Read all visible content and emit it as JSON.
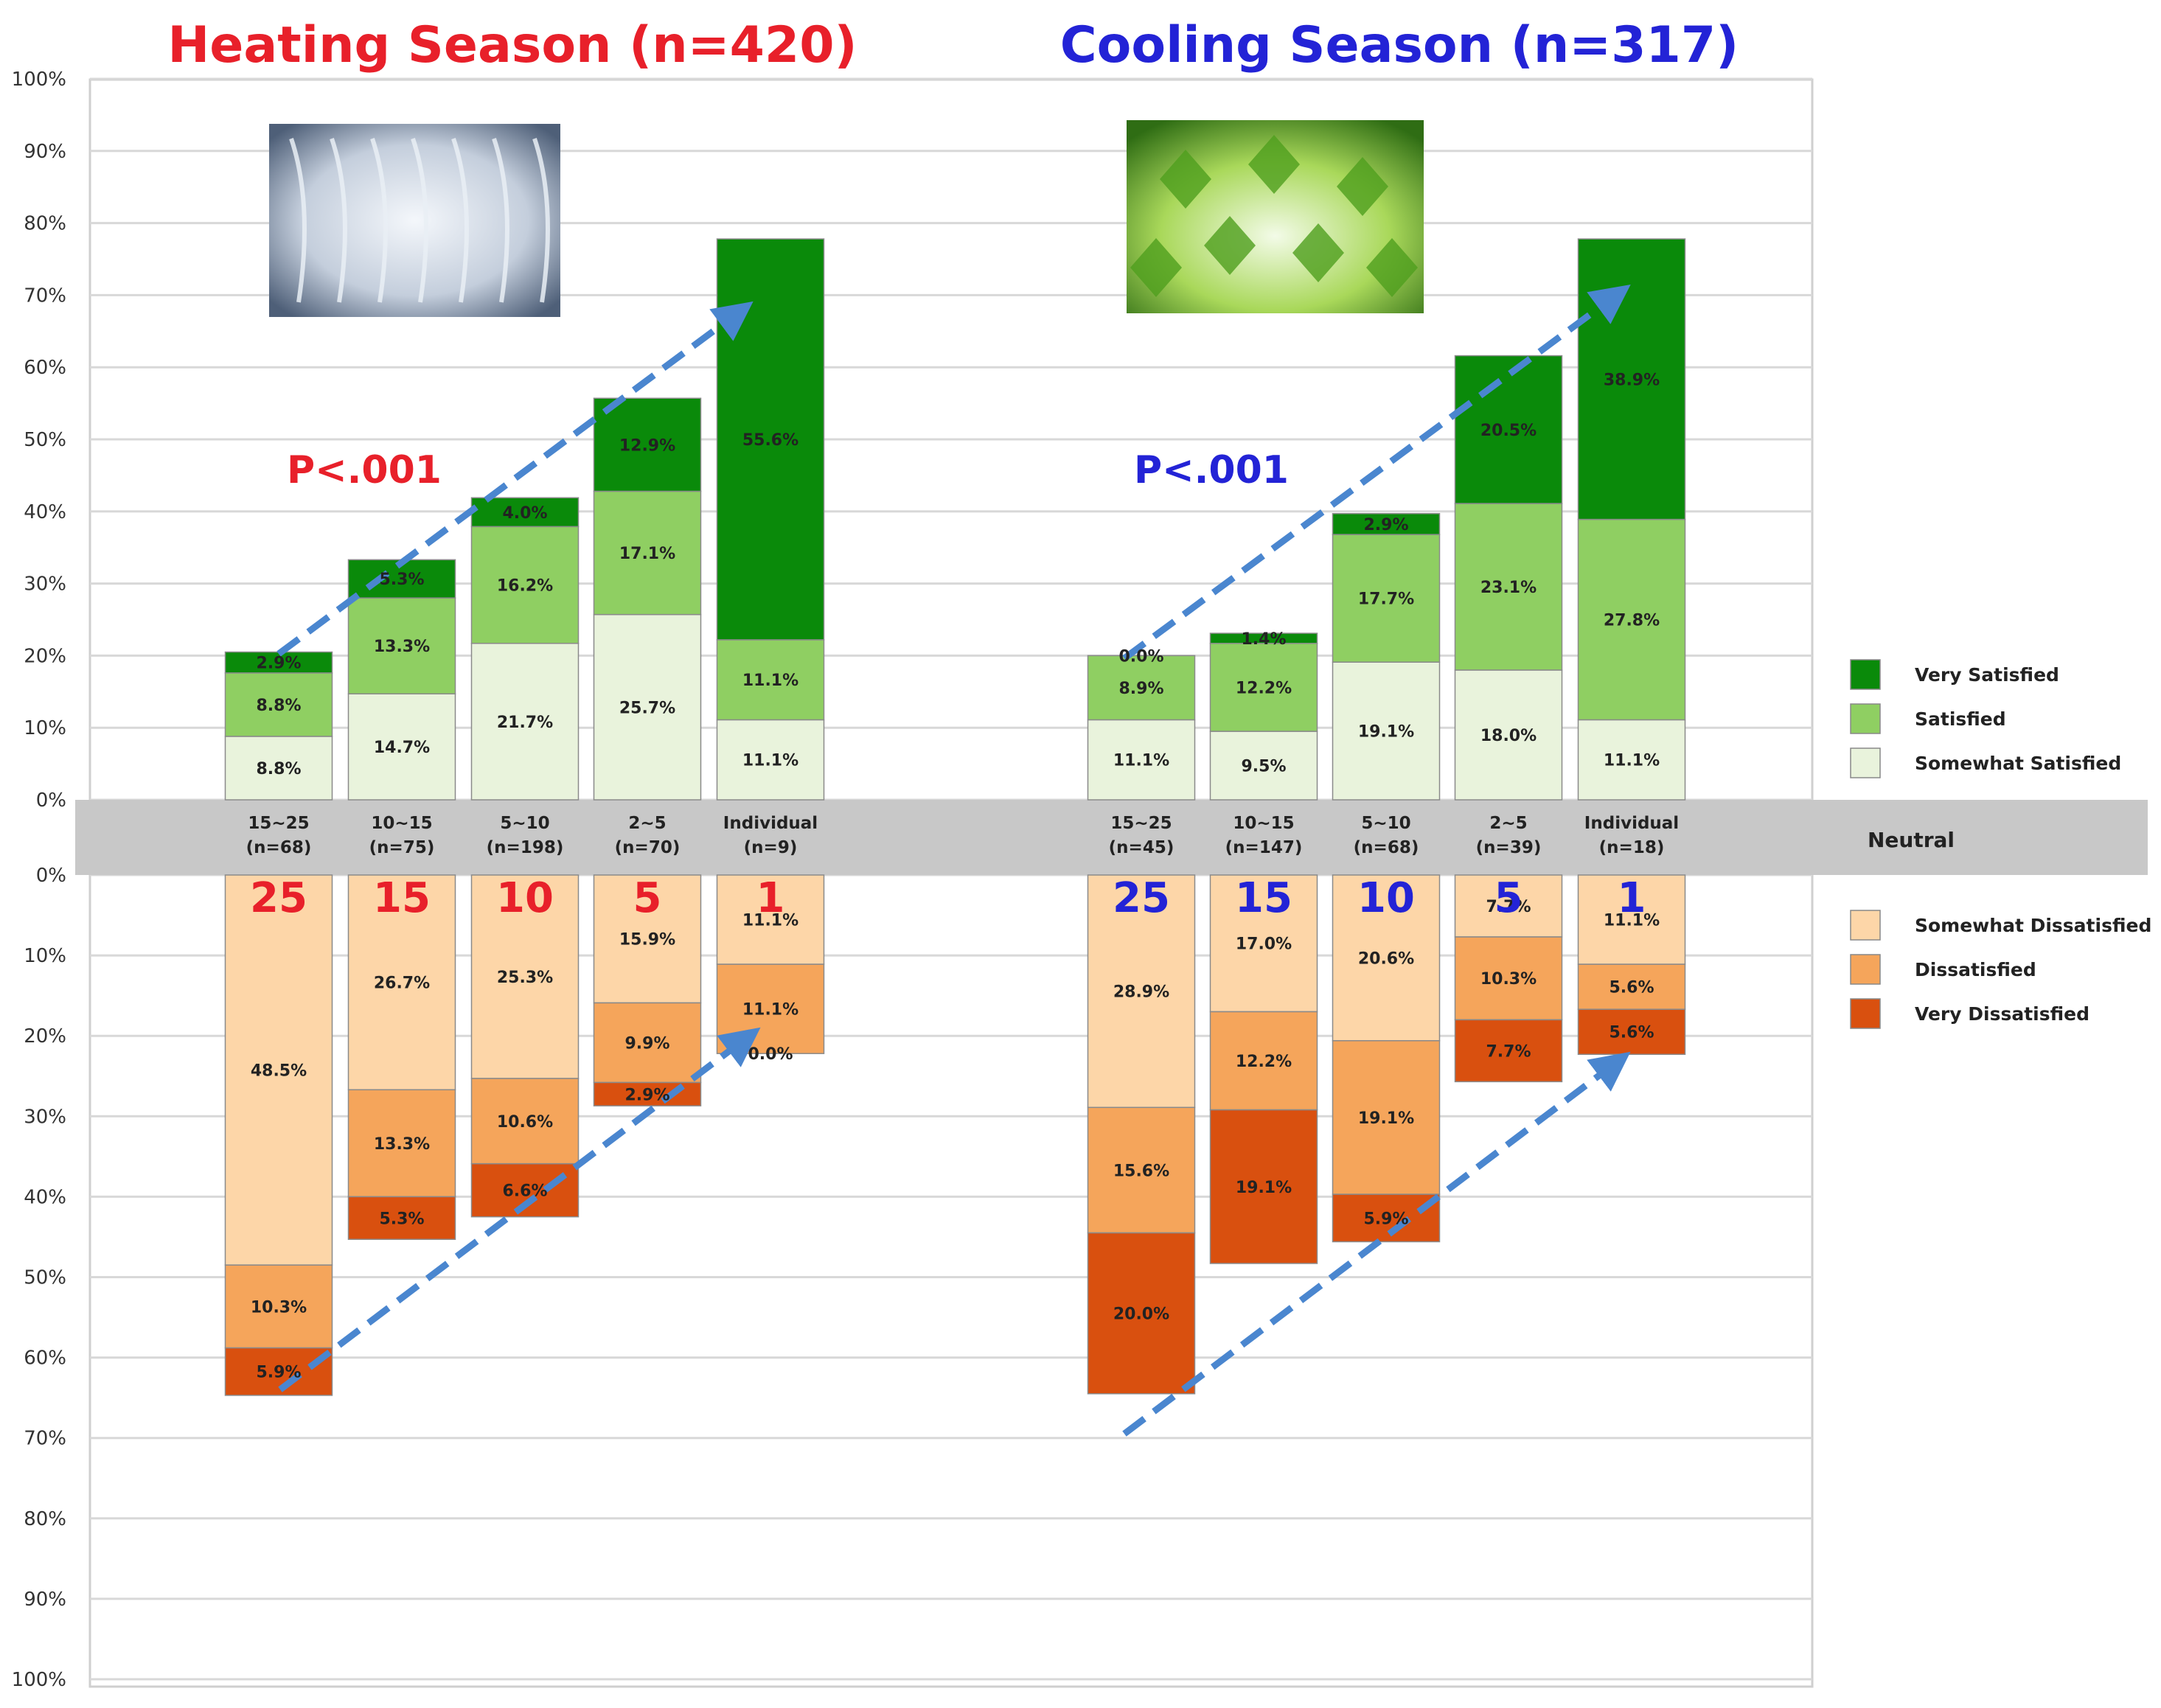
{
  "colors": {
    "very_satisfied": "#0a8a0a",
    "satisfied": "#8fcf62",
    "somewhat_satisfied": "#e9f3dc",
    "somewhat_dissatisfied": "#fdd6a8",
    "dissatisfied": "#f5a55b",
    "very_dissatisfied": "#d9500f",
    "neutral_band": "#c8c8c8",
    "heating": "#e8202a",
    "cooling": "#2323d6",
    "arrow": "#4a86cf"
  },
  "chart_data": {
    "type": "bar",
    "stacked": "diverging",
    "y_ticks_top": [
      "100%",
      "90%",
      "80%",
      "70%",
      "60%",
      "50%",
      "40%",
      "30%",
      "20%",
      "10%",
      "0%"
    ],
    "y_ticks_bottom": [
      "0%",
      "10%",
      "20%",
      "30%",
      "40%",
      "50%",
      "60%",
      "70%",
      "80%",
      "90%",
      "100%"
    ],
    "ylim": [
      -100,
      100
    ],
    "grid": true,
    "neutral_label": "Neutral",
    "legend": {
      "positive": [
        "Very Satisfied",
        "Satisfied",
        "Somewhat Satisfied"
      ],
      "negative": [
        "Somewhat Dissatisfied",
        "Dissatisfied",
        "Very Dissatisfied"
      ]
    },
    "panels": [
      {
        "title": "Heating Season (n=420)",
        "pvalue": "P<.001",
        "image": "snow-covered-branches",
        "categories": [
          {
            "label": "15~25",
            "n": "(n=68)",
            "big": "25",
            "pos": {
              "somewhat": {
                "v": 8.8,
                "t": "8.8%"
              },
              "satisfied": {
                "v": 8.8,
                "t": "8.8%"
              },
              "very": {
                "v": 2.9,
                "t": "2.9%"
              }
            },
            "neg": {
              "somewhat": {
                "v": 48.5,
                "t": "48.5%"
              },
              "dissatisfied": {
                "v": 10.3,
                "t": "10.3%"
              },
              "very": {
                "v": 5.9,
                "t": "5.9%"
              }
            }
          },
          {
            "label": "10~15",
            "n": "(n=75)",
            "big": "15",
            "pos": {
              "somewhat": {
                "v": 14.7,
                "t": "14.7%"
              },
              "satisfied": {
                "v": 13.3,
                "t": "13.3%"
              },
              "very": {
                "v": 5.3,
                "t": "5.3%"
              }
            },
            "neg": {
              "somewhat": {
                "v": 26.7,
                "t": "26.7%"
              },
              "dissatisfied": {
                "v": 13.3,
                "t": "13.3%"
              },
              "very": {
                "v": 5.3,
                "t": "5.3%"
              }
            }
          },
          {
            "label": "5~10",
            "n": "(n=198)",
            "big": "10",
            "pos": {
              "somewhat": {
                "v": 21.7,
                "t": "21.7%"
              },
              "satisfied": {
                "v": 16.2,
                "t": "16.2%"
              },
              "very": {
                "v": 4.0,
                "t": "4.0%"
              }
            },
            "neg": {
              "somewhat": {
                "v": 25.3,
                "t": "25.3%"
              },
              "dissatisfied": {
                "v": 10.6,
                "t": "10.6%"
              },
              "very": {
                "v": 6.6,
                "t": "6.6%"
              }
            }
          },
          {
            "label": "2~5",
            "n": "(n=70)",
            "big": "5",
            "pos": {
              "somewhat": {
                "v": 25.7,
                "t": "25.7%"
              },
              "satisfied": {
                "v": 17.1,
                "t": "17.1%"
              },
              "very": {
                "v": 12.9,
                "t": "12.9%"
              }
            },
            "neg": {
              "somewhat": {
                "v": 15.9,
                "t": "15.9%"
              },
              "dissatisfied": {
                "v": 9.9,
                "t": "9.9%"
              },
              "very": {
                "v": 2.9,
                "t": "2.9%"
              }
            }
          },
          {
            "label": "Individual",
            "n": "(n=9)",
            "big": "1",
            "pos": {
              "somewhat": {
                "v": 11.1,
                "t": "11.1%"
              },
              "satisfied": {
                "v": 11.1,
                "t": "11.1%"
              },
              "very": {
                "v": 55.6,
                "t": "55.6%"
              }
            },
            "neg": {
              "somewhat": {
                "v": 11.1,
                "t": "11.1%"
              },
              "dissatisfied": {
                "v": 11.1,
                "t": "11.1%"
              },
              "very": {
                "v": 0.0,
                "t": "0.0%"
              }
            }
          }
        ]
      },
      {
        "title": "Cooling Season (n=317)",
        "pvalue": "P<.001",
        "image": "green-maple-leaves",
        "categories": [
          {
            "label": "15~25",
            "n": "(n=45)",
            "big": "25",
            "pos": {
              "somewhat": {
                "v": 11.1,
                "t": "11.1%"
              },
              "satisfied": {
                "v": 8.9,
                "t": "8.9%"
              },
              "very": {
                "v": 0.0,
                "t": "0.0%"
              }
            },
            "neg": {
              "somewhat": {
                "v": 28.9,
                "t": "28.9%"
              },
              "dissatisfied": {
                "v": 15.6,
                "t": "15.6%"
              },
              "very": {
                "v": 20.0,
                "t": "20.0%"
              }
            }
          },
          {
            "label": "10~15",
            "n": "(n=147)",
            "big": "15",
            "pos": {
              "somewhat": {
                "v": 9.5,
                "t": "9.5%"
              },
              "satisfied": {
                "v": 12.2,
                "t": "12.2%"
              },
              "very": {
                "v": 1.4,
                "t": "1.4%"
              }
            },
            "neg": {
              "somewhat": {
                "v": 17.0,
                "t": "17.0%"
              },
              "dissatisfied": {
                "v": 12.2,
                "t": "12.2%"
              },
              "very": {
                "v": 19.1,
                "t": "19.1%"
              }
            }
          },
          {
            "label": "5~10",
            "n": "(n=68)",
            "big": "10",
            "pos": {
              "somewhat": {
                "v": 19.1,
                "t": "19.1%"
              },
              "satisfied": {
                "v": 17.7,
                "t": "17.7%"
              },
              "very": {
                "v": 2.9,
                "t": "2.9%"
              }
            },
            "neg": {
              "somewhat": {
                "v": 20.6,
                "t": "20.6%"
              },
              "dissatisfied": {
                "v": 19.1,
                "t": "19.1%"
              },
              "very": {
                "v": 5.9,
                "t": "5.9%"
              }
            }
          },
          {
            "label": "2~5",
            "n": "(n=39)",
            "big": "5",
            "pos": {
              "somewhat": {
                "v": 18.0,
                "t": "18.0%"
              },
              "satisfied": {
                "v": 23.1,
                "t": "23.1%"
              },
              "very": {
                "v": 20.5,
                "t": "20.5%"
              }
            },
            "neg": {
              "somewhat": {
                "v": 7.7,
                "t": "7.7%"
              },
              "dissatisfied": {
                "v": 10.3,
                "t": "10.3%"
              },
              "very": {
                "v": 7.7,
                "t": "7.7%"
              }
            }
          },
          {
            "label": "Individual",
            "n": "(n=18)",
            "big": "1",
            "pos": {
              "somewhat": {
                "v": 11.1,
                "t": "11.1%"
              },
              "satisfied": {
                "v": 27.8,
                "t": "27.8%"
              },
              "very": {
                "v": 38.9,
                "t": "38.9%"
              }
            },
            "neg": {
              "somewhat": {
                "v": 11.1,
                "t": "11.1%"
              },
              "dissatisfied": {
                "v": 5.6,
                "t": "5.6%"
              },
              "very": {
                "v": 5.6,
                "t": "5.6%"
              }
            }
          }
        ]
      }
    ]
  }
}
